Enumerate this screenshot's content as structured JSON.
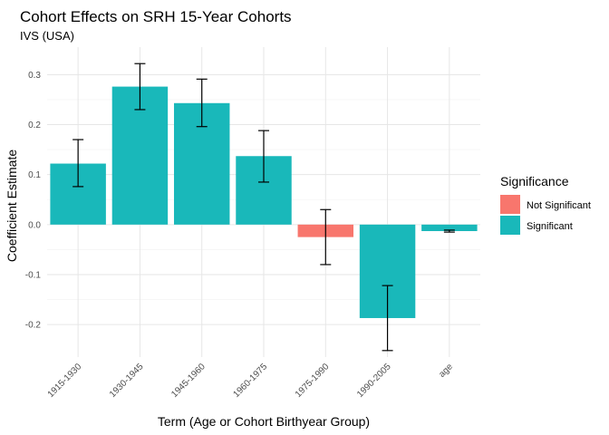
{
  "chart_data": {
    "type": "bar",
    "title": "Cohort Effects on SRH 15-Year Cohorts",
    "subtitle": "IVS (USA)",
    "xlabel": "Term (Age or Cohort Birthyear Group)",
    "ylabel": "Coefficient Estimate",
    "categories": [
      "1915-1930",
      "1930-1945",
      "1945-1960",
      "1960-1975",
      "1975-1990",
      "1990-2005",
      "age"
    ],
    "values": [
      0.122,
      0.276,
      0.243,
      0.137,
      -0.025,
      -0.187,
      -0.013
    ],
    "error_low": [
      0.076,
      0.23,
      0.196,
      0.085,
      -0.08,
      -0.252,
      -0.015
    ],
    "error_high": [
      0.17,
      0.322,
      0.291,
      0.188,
      0.03,
      -0.122,
      -0.011
    ],
    "significance": [
      "Significant",
      "Significant",
      "Significant",
      "Significant",
      "Not Significant",
      "Significant",
      "Significant"
    ],
    "ylim": [
      -0.265,
      0.355
    ],
    "yticks": [
      -0.2,
      -0.1,
      0.0,
      0.1,
      0.2,
      0.3
    ],
    "ytick_labels": [
      "-0.2",
      "-0.1",
      "0.0",
      "0.1",
      "0.2",
      "0.3"
    ],
    "grid": true,
    "legend": {
      "title": "Significance",
      "placement": "right",
      "entries": [
        {
          "label": "Not Significant",
          "color": "#F8766D"
        },
        {
          "label": "Significant",
          "color": "#19B8BA"
        }
      ]
    }
  }
}
